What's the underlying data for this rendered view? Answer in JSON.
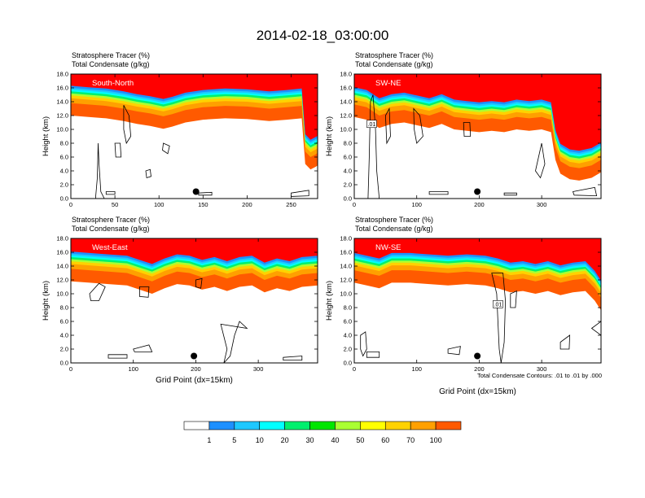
{
  "title": "2014-02-18_03:00:00",
  "contour_note": "Total Condensate Contours: .01 to .01 by .000",
  "colors": {
    "levels": [
      "#ffffff",
      "#1e90ff",
      "#1ec8ff",
      "#00ffff",
      "#00f06e",
      "#00e600",
      "#aaff32",
      "#ffff00",
      "#ffd200",
      "#ffa000",
      "#ff5a00",
      "#ff0000"
    ],
    "contour_line": "#000000",
    "marker": "#000000"
  },
  "chart_data": [
    {
      "type": "heatmap",
      "name": "panel-south-north",
      "subtitle_1": "Stratosphere Tracer   (%)",
      "subtitle_2": "Total Condensate   (g/kg)",
      "region_label": "South-North",
      "ylabel": "Height (km)",
      "xlabel": "",
      "xlim": [
        0,
        280
      ],
      "ylim": [
        0,
        18
      ],
      "xticks": [
        "0",
        "50",
        "100",
        "150",
        "200",
        "250"
      ],
      "xtick_values": [
        0,
        50,
        100,
        150,
        200,
        250
      ],
      "yticks": [
        "0.0",
        "2.0",
        "4.0",
        "6.0",
        "8.0",
        "10.0",
        "12.0",
        "14.0",
        "16.0",
        "18.0"
      ],
      "tropopause_km": [
        [
          0,
          15.4
        ],
        [
          20,
          15.2
        ],
        [
          40,
          15.0
        ],
        [
          60,
          14.6
        ],
        [
          75,
          14.2
        ],
        [
          90,
          13.9
        ],
        [
          105,
          13.5
        ],
        [
          115,
          13.8
        ],
        [
          130,
          14.4
        ],
        [
          150,
          14.8
        ],
        [
          175,
          15.0
        ],
        [
          200,
          14.9
        ],
        [
          225,
          14.6
        ],
        [
          245,
          14.8
        ],
        [
          262,
          15.0
        ],
        [
          266,
          8.4
        ],
        [
          272,
          7.6
        ],
        [
          278,
          8.0
        ],
        [
          280,
          8.2
        ]
      ],
      "contour_label": "",
      "marker_x": 142,
      "marker_y": 1.0
    },
    {
      "type": "heatmap",
      "name": "panel-sw-ne",
      "subtitle_1": "Stratosphere Tracer   (%)",
      "subtitle_2": "Total Condensate   (g/kg)",
      "region_label": "SW-NE",
      "ylabel": "Height (km)",
      "xlabel": "",
      "xlim": [
        0,
        395
      ],
      "ylim": [
        0,
        18
      ],
      "xticks": [
        "0",
        "100",
        "200",
        "300"
      ],
      "xtick_values": [
        0,
        100,
        200,
        300
      ],
      "yticks": [
        "0.0",
        "2.0",
        "4.0",
        "6.0",
        "8.0",
        "10.0",
        "12.0",
        "14.0",
        "16.0",
        "18.0"
      ],
      "tropopause_km": [
        [
          0,
          15.2
        ],
        [
          20,
          14.8
        ],
        [
          40,
          13.6
        ],
        [
          60,
          14.2
        ],
        [
          80,
          14.4
        ],
        [
          100,
          14.0
        ],
        [
          120,
          13.6
        ],
        [
          140,
          14.2
        ],
        [
          160,
          13.4
        ],
        [
          180,
          13.2
        ],
        [
          200,
          13.0
        ],
        [
          220,
          13.2
        ],
        [
          240,
          13.0
        ],
        [
          260,
          13.4
        ],
        [
          280,
          13.2
        ],
        [
          300,
          13.4
        ],
        [
          315,
          13.0
        ],
        [
          322,
          9.0
        ],
        [
          330,
          7.0
        ],
        [
          345,
          6.2
        ],
        [
          360,
          6.0
        ],
        [
          380,
          6.4
        ],
        [
          395,
          7.2
        ]
      ],
      "contour_label": ".01",
      "marker_x": 197,
      "marker_y": 1.0
    },
    {
      "type": "heatmap",
      "name": "panel-west-east",
      "subtitle_1": "Stratosphere Tracer   (%)",
      "subtitle_2": "Total Condensate   (g/kg)",
      "region_label": "West-East",
      "ylabel": "Height (km)",
      "xlabel": "Grid Point (dx=15km)",
      "xlim": [
        0,
        395
      ],
      "ylim": [
        0,
        18
      ],
      "xticks": [
        "0",
        "100",
        "200",
        "300"
      ],
      "xtick_values": [
        0,
        100,
        200,
        300
      ],
      "yticks": [
        "0.0",
        "2.0",
        "4.0",
        "6.0",
        "8.0",
        "10.0",
        "12.0",
        "14.0",
        "16.0",
        "18.0"
      ],
      "tropopause_km": [
        [
          0,
          15.2
        ],
        [
          30,
          15.0
        ],
        [
          60,
          14.8
        ],
        [
          90,
          14.6
        ],
        [
          110,
          14.0
        ],
        [
          130,
          13.4
        ],
        [
          150,
          14.2
        ],
        [
          170,
          14.8
        ],
        [
          190,
          14.6
        ],
        [
          210,
          14.0
        ],
        [
          230,
          14.4
        ],
        [
          250,
          13.8
        ],
        [
          270,
          14.4
        ],
        [
          290,
          14.6
        ],
        [
          310,
          13.6
        ],
        [
          330,
          14.2
        ],
        [
          350,
          13.8
        ],
        [
          370,
          14.4
        ],
        [
          395,
          14.6
        ]
      ],
      "contour_label": "",
      "marker_x": 197,
      "marker_y": 1.0
    },
    {
      "type": "heatmap",
      "name": "panel-nw-se",
      "subtitle_1": "Stratosphere Tracer   (%)",
      "subtitle_2": "Total Condensate   (g/kg)",
      "region_label": "NW-SE",
      "ylabel": "Height (km)",
      "xlabel": "Grid Point (dx=15km)",
      "xlim": [
        0,
        395
      ],
      "ylim": [
        0,
        18
      ],
      "xticks": [
        "0",
        "100",
        "200",
        "300"
      ],
      "xtick_values": [
        0,
        100,
        200,
        300
      ],
      "yticks": [
        "0.0",
        "2.0",
        "4.0",
        "6.0",
        "8.0",
        "10.0",
        "12.0",
        "14.0",
        "16.0",
        "18.0"
      ],
      "tropopause_km": [
        [
          0,
          15.0
        ],
        [
          20,
          14.6
        ],
        [
          40,
          14.2
        ],
        [
          60,
          15.0
        ],
        [
          90,
          15.0
        ],
        [
          120,
          14.8
        ],
        [
          150,
          14.6
        ],
        [
          180,
          14.8
        ],
        [
          210,
          14.6
        ],
        [
          230,
          14.2
        ],
        [
          250,
          13.6
        ],
        [
          270,
          13.8
        ],
        [
          290,
          13.4
        ],
        [
          310,
          13.8
        ],
        [
          330,
          13.2
        ],
        [
          350,
          13.6
        ],
        [
          370,
          13.8
        ],
        [
          385,
          12.4
        ],
        [
          395,
          11.0
        ]
      ],
      "contour_label": ".01",
      "marker_x": 197,
      "marker_y": 1.0
    }
  ],
  "labelbar": {
    "tick_labels": [
      "1",
      "5",
      "10",
      "20",
      "30",
      "40",
      "50",
      "60",
      "70",
      "100"
    ]
  }
}
